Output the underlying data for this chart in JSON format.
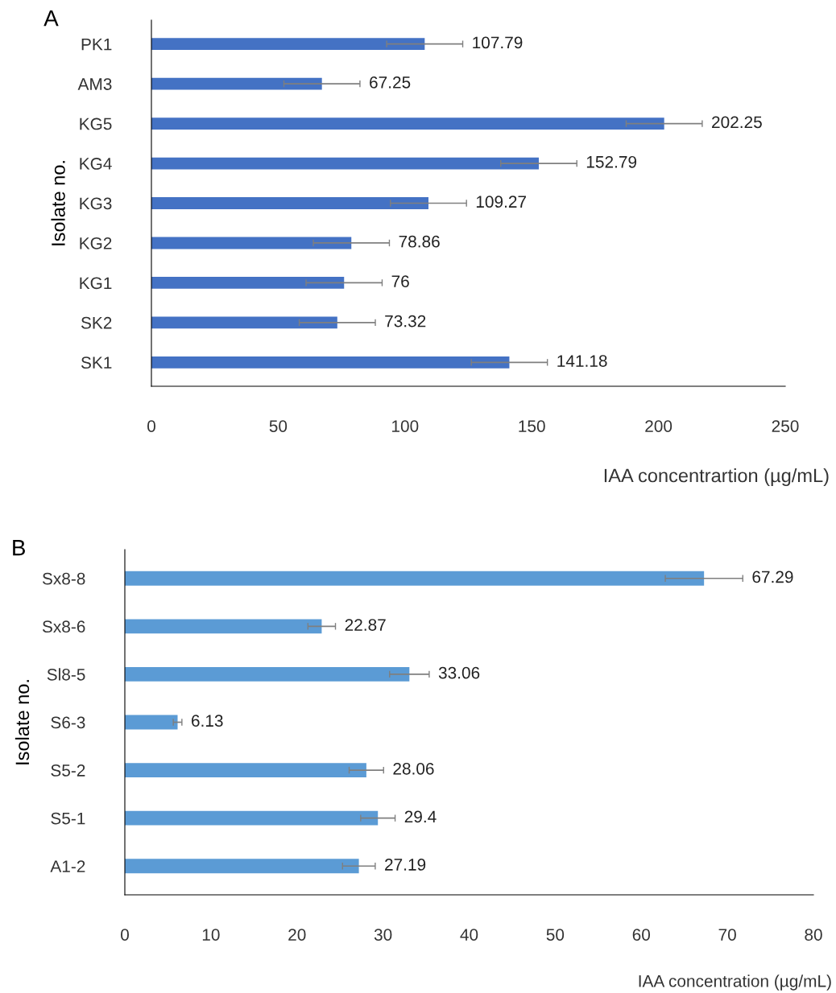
{
  "chart_data": [
    {
      "type": "bar",
      "title": "A",
      "orientation": "horizontal",
      "categories": [
        "PK1",
        "AM3",
        "KG5",
        "KG4",
        "KG3",
        "KG2",
        "KG1",
        "SK2",
        "SK1"
      ],
      "series": [
        {
          "color": "#4472c4",
          "values": [
            107.79,
            67.25,
            202.25,
            152.79,
            109.27,
            78.86,
            76,
            73.32,
            141.18
          ],
          "errors": [
            15,
            15,
            15,
            15,
            15,
            15,
            15,
            15,
            15
          ]
        }
      ],
      "data_labels": true,
      "xlim": [
        0,
        250
      ],
      "xticks": [
        0,
        50,
        100,
        150,
        200,
        250
      ],
      "xlabel": "IAA concentrartion (µg/mL)",
      "ylabel": "Isolate no.",
      "grid": false,
      "legend": false
    },
    {
      "type": "bar",
      "title": "B",
      "orientation": "horizontal",
      "categories": [
        "Sx8-8",
        "Sx8-6",
        "Sl8-5",
        "S6-3",
        "S5-2",
        "S5-1",
        "A1-2"
      ],
      "series": [
        {
          "color": "#5b9bd5",
          "values": [
            67.29,
            22.87,
            33.06,
            6.13,
            28.06,
            29.4,
            27.19
          ],
          "errors": [
            4.5,
            1.6,
            2.3,
            0.5,
            2.0,
            2.0,
            1.9
          ]
        }
      ],
      "data_labels": true,
      "xlim": [
        0,
        80
      ],
      "xticks": [
        0,
        10,
        20,
        30,
        40,
        50,
        60,
        70,
        80
      ],
      "xlabel": "IAA concentration (µg/mL)",
      "ylabel": "Isolate no.",
      "grid": false,
      "legend": false
    }
  ]
}
